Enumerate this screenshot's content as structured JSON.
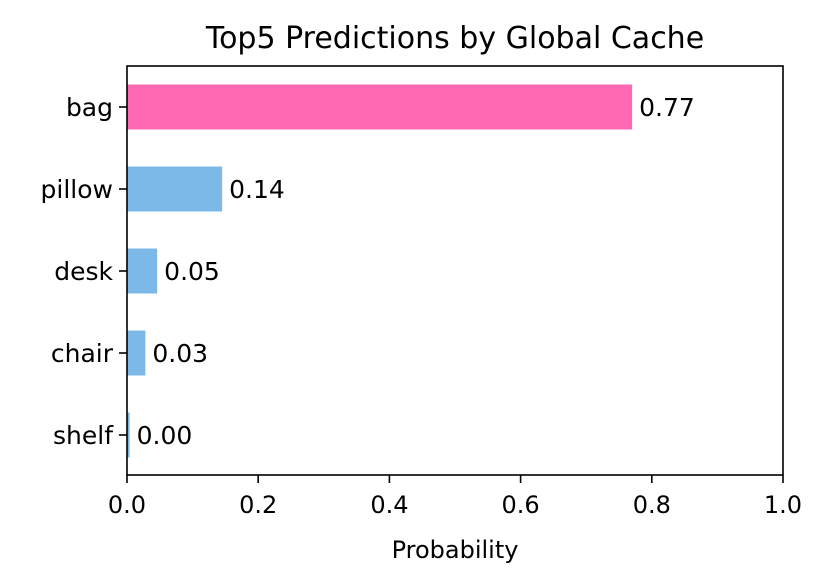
{
  "chart_data": {
    "type": "bar",
    "orientation": "horizontal",
    "title": "Top5 Predictions by Global Cache",
    "xlabel": "Probability",
    "ylabel": "",
    "xlim": [
      0,
      1.0
    ],
    "xticks": [
      0.0,
      0.2,
      0.4,
      0.6,
      0.8,
      1.0
    ],
    "xtick_labels": [
      "0.0",
      "0.2",
      "0.4",
      "0.6",
      "0.8",
      "1.0"
    ],
    "categories": [
      "bag",
      "pillow",
      "desk",
      "chair",
      "shelf"
    ],
    "values": [
      0.77,
      0.145,
      0.046,
      0.028,
      0.004
    ],
    "data_labels": [
      "0.77",
      "0.14",
      "0.05",
      "0.03",
      "0.00"
    ],
    "colors": [
      "#ff69b4",
      "#7cb8e8",
      "#7cb8e8",
      "#7cb8e8",
      "#7cb8e8"
    ],
    "grid": false,
    "legend": "none"
  }
}
